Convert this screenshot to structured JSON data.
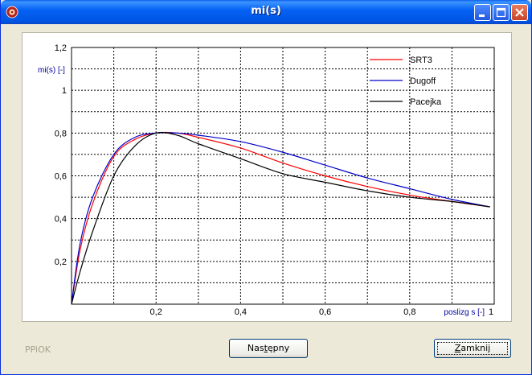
{
  "window": {
    "title": "mi(s)",
    "icons": {
      "app": "app-icon",
      "minimize": "minimize-icon",
      "maximize": "maximize-icon",
      "close": "close-icon"
    }
  },
  "status_label": "PPiOK",
  "buttons": {
    "next": {
      "label": "Następny",
      "mnemonic_index": 3
    },
    "close": {
      "label": "Zamknij",
      "mnemonic_index": 0
    }
  },
  "chart_data": {
    "type": "line",
    "xlabel": "poslizg s [-]",
    "ylabel": "mi(s) [-]",
    "xlim": [
      0,
      1
    ],
    "ylim": [
      0,
      1.2
    ],
    "xticks": [
      0.2,
      0.4,
      0.6,
      0.8,
      1
    ],
    "xtick_labels": [
      "0,2",
      "0,4",
      "0,6",
      "0,8",
      "1"
    ],
    "yticks": [
      0.2,
      0.4,
      0.6,
      0.8,
      1.0,
      1.2
    ],
    "ytick_labels": [
      "0,2",
      "0,4",
      "0,6",
      "0,8",
      "1",
      "1,2"
    ],
    "grid": true,
    "legend_position": "top-right",
    "series": [
      {
        "name": "SRT3",
        "color": "#FF0000",
        "x": [
          0,
          0.02,
          0.05,
          0.1,
          0.15,
          0.2,
          0.25,
          0.3,
          0.4,
          0.5,
          0.6,
          0.7,
          0.8,
          0.9,
          0.99
        ],
        "y": [
          0,
          0.25,
          0.47,
          0.69,
          0.77,
          0.8,
          0.8,
          0.78,
          0.73,
          0.66,
          0.6,
          0.55,
          0.51,
          0.48,
          0.455
        ]
      },
      {
        "name": "Dugoff",
        "color": "#0000C8",
        "x": [
          0,
          0.02,
          0.05,
          0.1,
          0.15,
          0.2,
          0.25,
          0.3,
          0.4,
          0.5,
          0.6,
          0.7,
          0.8,
          0.9,
          0.99
        ],
        "y": [
          0,
          0.28,
          0.5,
          0.7,
          0.78,
          0.8,
          0.8,
          0.79,
          0.76,
          0.71,
          0.65,
          0.59,
          0.54,
          0.49,
          0.455
        ]
      },
      {
        "name": "Pacejka",
        "color": "#000000",
        "x": [
          0,
          0.02,
          0.05,
          0.1,
          0.15,
          0.2,
          0.25,
          0.3,
          0.4,
          0.5,
          0.6,
          0.7,
          0.8,
          0.9,
          0.99
        ],
        "y": [
          0,
          0.15,
          0.34,
          0.6,
          0.74,
          0.8,
          0.79,
          0.75,
          0.68,
          0.61,
          0.57,
          0.53,
          0.5,
          0.48,
          0.455
        ]
      }
    ]
  }
}
